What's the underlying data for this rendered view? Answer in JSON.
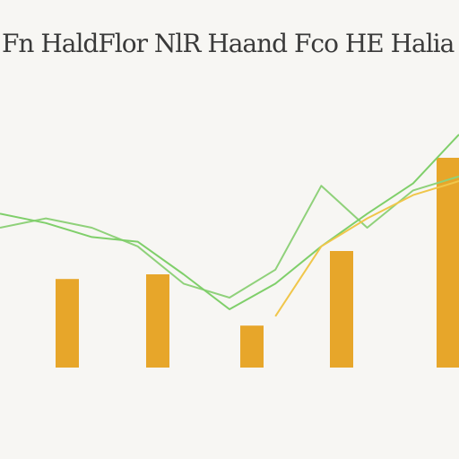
{
  "title": "Fn HaldFlor NlR Haand Fco HE Halia G",
  "header_labels": [
    "",
    "",
    "",
    ""
  ],
  "row_labels": [
    "",
    "",
    "",
    "",
    ""
  ],
  "chart_data": {
    "type": "bar",
    "title": "Fn HaldFlor NlR Haand Fco HE Halia G",
    "categories": [
      "",
      "",
      "",
      "",
      ""
    ],
    "bar_values": [
      38,
      40,
      18,
      50,
      90
    ],
    "ylim": [
      0,
      100
    ],
    "series": [
      {
        "name": "",
        "color": "#8fd17a",
        "x": [
          0,
          1,
          2,
          3,
          4,
          5,
          6,
          7,
          8,
          9,
          10
        ],
        "values": [
          60,
          64,
          60,
          52,
          36,
          30,
          42,
          78,
          60,
          76,
          82
        ]
      },
      {
        "name": "",
        "color": "#7fcf6a",
        "x": [
          0,
          1,
          2,
          3,
          4,
          5,
          6,
          7,
          8,
          9,
          10
        ],
        "values": [
          66,
          62,
          56,
          54,
          40,
          25,
          36,
          52,
          66,
          79,
          100
        ]
      },
      {
        "name": "",
        "color": "#f0c64a",
        "x": [
          6,
          7,
          8,
          9,
          10
        ],
        "values": [
          22,
          52,
          64,
          74,
          80
        ]
      }
    ],
    "colors": {
      "bars": "#e7a62a",
      "background": "#f7f6f3"
    },
    "grid": false
  }
}
